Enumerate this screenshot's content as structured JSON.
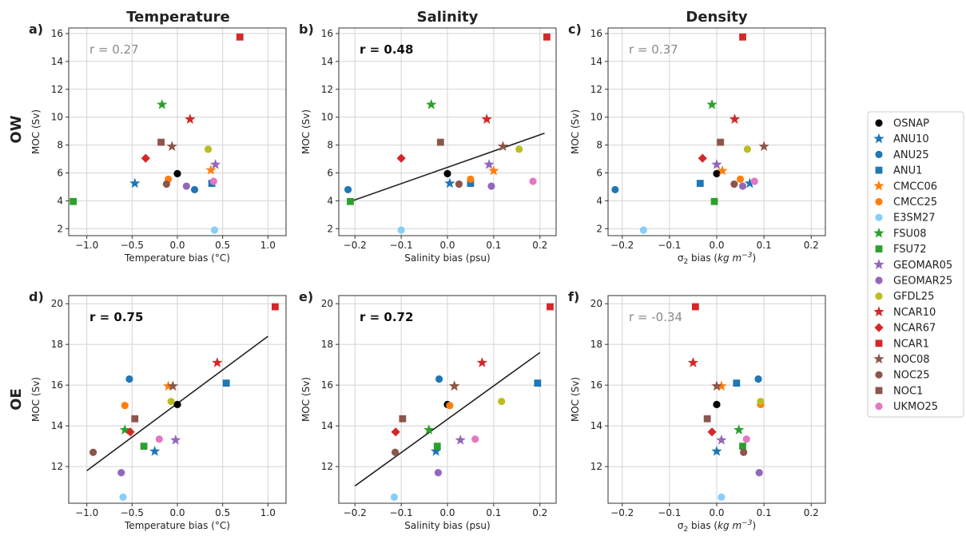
{
  "row_labels": [
    "OW",
    "OE"
  ],
  "column_titles": [
    "Temperature",
    "Salinity",
    "Density"
  ],
  "legend": [
    {
      "name": "OSNAP",
      "color": "#000000",
      "marker": "circle"
    },
    {
      "name": "ANU10",
      "color": "#1f77b4",
      "marker": "star"
    },
    {
      "name": "ANU25",
      "color": "#1f77b4",
      "marker": "circle"
    },
    {
      "name": "ANU1",
      "color": "#1f77b4",
      "marker": "square"
    },
    {
      "name": "CMCC06",
      "color": "#ff7f0e",
      "marker": "star"
    },
    {
      "name": "CMCC25",
      "color": "#ff7f0e",
      "marker": "circle"
    },
    {
      "name": "E3SM27",
      "color": "#87cefa",
      "marker": "circle"
    },
    {
      "name": "FSU08",
      "color": "#2ca02c",
      "marker": "star"
    },
    {
      "name": "FSU72",
      "color": "#2ca02c",
      "marker": "square"
    },
    {
      "name": "GEOMAR05",
      "color": "#9467bd",
      "marker": "star"
    },
    {
      "name": "GEOMAR25",
      "color": "#9467bd",
      "marker": "circle"
    },
    {
      "name": "GFDL25",
      "color": "#bcbd22",
      "marker": "circle"
    },
    {
      "name": "NCAR10",
      "color": "#d62728",
      "marker": "star"
    },
    {
      "name": "NCAR67",
      "color": "#d62728",
      "marker": "diamond"
    },
    {
      "name": "NCAR1",
      "color": "#d62728",
      "marker": "square"
    },
    {
      "name": "NOC08",
      "color": "#8c564b",
      "marker": "star"
    },
    {
      "name": "NOC25",
      "color": "#8c564b",
      "marker": "circle"
    },
    {
      "name": "NOC1",
      "color": "#8c564b",
      "marker": "square"
    },
    {
      "name": "UKMO25",
      "color": "#e377c2",
      "marker": "circle"
    }
  ],
  "chart_data": [
    {
      "type": "scatter",
      "panel_label": "a)",
      "title": "Temperature",
      "row": "OW",
      "xlabel": "Temperature bias (°C)",
      "ylabel": "MOC (Sv)",
      "xlim": [
        -1.2,
        1.2
      ],
      "ylim": [
        1.5,
        16.4
      ],
      "xticks": [
        -1.0,
        -0.5,
        0.0,
        0.5,
        1.0
      ],
      "xticklabels": [
        "−1.0",
        "−0.5",
        "0.0",
        "0.5",
        "1.0"
      ],
      "yticks": [
        2,
        4,
        6,
        8,
        10,
        12,
        14,
        16
      ],
      "yticklabels": [
        "2",
        "4",
        "6",
        "8",
        "10",
        "12",
        "14",
        "16"
      ],
      "r_text": "r = 0.27",
      "r_bold": false,
      "fit": null,
      "points": [
        {
          "name": "OSNAP",
          "x": 0.0,
          "y": 5.95
        },
        {
          "name": "ANU10",
          "x": -0.47,
          "y": 5.25
        },
        {
          "name": "ANU25",
          "x": 0.19,
          "y": 4.8
        },
        {
          "name": "ANU1",
          "x": 0.38,
          "y": 5.25
        },
        {
          "name": "CMCC06",
          "x": 0.37,
          "y": 6.2
        },
        {
          "name": "CMCC25",
          "x": -0.1,
          "y": 5.55
        },
        {
          "name": "E3SM27",
          "x": 0.41,
          "y": 1.9
        },
        {
          "name": "FSU08",
          "x": -0.17,
          "y": 10.9
        },
        {
          "name": "FSU72",
          "x": -1.15,
          "y": 3.95
        },
        {
          "name": "GEOMAR05",
          "x": 0.42,
          "y": 6.6
        },
        {
          "name": "GEOMAR25",
          "x": 0.1,
          "y": 5.05
        },
        {
          "name": "GFDL25",
          "x": 0.34,
          "y": 7.7
        },
        {
          "name": "NCAR10",
          "x": 0.14,
          "y": 9.85
        },
        {
          "name": "NCAR67",
          "x": -0.35,
          "y": 7.05
        },
        {
          "name": "NCAR1",
          "x": 0.69,
          "y": 15.75
        },
        {
          "name": "NOC08",
          "x": -0.06,
          "y": 7.9
        },
        {
          "name": "NOC25",
          "x": -0.12,
          "y": 5.2
        },
        {
          "name": "NOC1",
          "x": -0.18,
          "y": 8.2
        },
        {
          "name": "UKMO25",
          "x": 0.4,
          "y": 5.4
        }
      ]
    },
    {
      "type": "scatter",
      "panel_label": "b)",
      "title": "Salinity",
      "row": "OW",
      "xlabel": "Salinity bias (psu)",
      "ylabel": "MOC (Sv)",
      "xlim": [
        -0.235,
        0.235
      ],
      "ylim": [
        1.5,
        16.4
      ],
      "xticks": [
        -0.2,
        -0.1,
        0.0,
        0.1,
        0.2
      ],
      "xticklabels": [
        "−0.2",
        "−0.1",
        "0.0",
        "0.1",
        "0.2"
      ],
      "yticks": [
        2,
        4,
        6,
        8,
        10,
        12,
        14,
        16
      ],
      "yticklabels": [
        "2",
        "4",
        "6",
        "8",
        "10",
        "12",
        "14",
        "16"
      ],
      "r_text": "r = 0.48",
      "r_bold": true,
      "fit": [
        [
          -0.21,
          3.95
        ],
        [
          0.21,
          8.85
        ]
      ],
      "points": [
        {
          "name": "OSNAP",
          "x": 0.0,
          "y": 5.95
        },
        {
          "name": "ANU10",
          "x": 0.005,
          "y": 5.25
        },
        {
          "name": "ANU25",
          "x": -0.215,
          "y": 4.8
        },
        {
          "name": "ANU1",
          "x": 0.05,
          "y": 5.25
        },
        {
          "name": "CMCC06",
          "x": 0.1,
          "y": 6.15
        },
        {
          "name": "CMCC25",
          "x": 0.05,
          "y": 5.55
        },
        {
          "name": "E3SM27",
          "x": -0.1,
          "y": 1.9
        },
        {
          "name": "FSU08",
          "x": -0.035,
          "y": 10.9
        },
        {
          "name": "FSU72",
          "x": -0.21,
          "y": 3.95
        },
        {
          "name": "GEOMAR05",
          "x": 0.09,
          "y": 6.6
        },
        {
          "name": "GEOMAR25",
          "x": 0.095,
          "y": 5.05
        },
        {
          "name": "GFDL25",
          "x": 0.155,
          "y": 7.7
        },
        {
          "name": "NCAR10",
          "x": 0.085,
          "y": 9.85
        },
        {
          "name": "NCAR67",
          "x": -0.1,
          "y": 7.05
        },
        {
          "name": "NCAR1",
          "x": 0.215,
          "y": 15.75
        },
        {
          "name": "NOC08",
          "x": 0.12,
          "y": 7.9
        },
        {
          "name": "NOC25",
          "x": 0.025,
          "y": 5.2
        },
        {
          "name": "NOC1",
          "x": -0.015,
          "y": 8.2
        },
        {
          "name": "UKMO25",
          "x": 0.185,
          "y": 5.4
        }
      ]
    },
    {
      "type": "scatter",
      "panel_label": "c)",
      "title": "Density",
      "row": "OW",
      "xlabel": "σ₂ bias (kg m⁻³)",
      "ylabel": "MOC (Sv)",
      "xlim": [
        -0.23,
        0.23
      ],
      "ylim": [
        1.5,
        16.4
      ],
      "xticks": [
        -0.2,
        -0.1,
        0.0,
        0.1,
        0.2
      ],
      "xticklabels": [
        "−0.2",
        "−0.1",
        "0.0",
        "0.1",
        "0.2"
      ],
      "yticks": [
        2,
        4,
        6,
        8,
        10,
        12,
        14,
        16
      ],
      "yticklabels": [
        "2",
        "4",
        "6",
        "8",
        "10",
        "12",
        "14",
        "16"
      ],
      "r_text": "r = 0.37",
      "r_bold": false,
      "fit": null,
      "points": [
        {
          "name": "OSNAP",
          "x": 0.0,
          "y": 5.95
        },
        {
          "name": "ANU10",
          "x": 0.07,
          "y": 5.25
        },
        {
          "name": "ANU25",
          "x": -0.215,
          "y": 4.8
        },
        {
          "name": "ANU1",
          "x": -0.035,
          "y": 5.25
        },
        {
          "name": "CMCC06",
          "x": 0.012,
          "y": 6.15
        },
        {
          "name": "CMCC25",
          "x": 0.05,
          "y": 5.55
        },
        {
          "name": "E3SM27",
          "x": -0.155,
          "y": 1.9
        },
        {
          "name": "FSU08",
          "x": -0.01,
          "y": 10.9
        },
        {
          "name": "FSU72",
          "x": -0.005,
          "y": 3.95
        },
        {
          "name": "GEOMAR05",
          "x": 0.0,
          "y": 6.6
        },
        {
          "name": "GEOMAR25",
          "x": 0.055,
          "y": 5.05
        },
        {
          "name": "GFDL25",
          "x": 0.065,
          "y": 7.7
        },
        {
          "name": "NCAR10",
          "x": 0.038,
          "y": 9.85
        },
        {
          "name": "NCAR67",
          "x": -0.03,
          "y": 7.05
        },
        {
          "name": "NCAR1",
          "x": 0.055,
          "y": 15.75
        },
        {
          "name": "NOC08",
          "x": 0.1,
          "y": 7.9
        },
        {
          "name": "NOC25",
          "x": 0.037,
          "y": 5.2
        },
        {
          "name": "NOC1",
          "x": 0.008,
          "y": 8.2
        },
        {
          "name": "UKMO25",
          "x": 0.08,
          "y": 5.4
        }
      ]
    },
    {
      "type": "scatter",
      "panel_label": "d)",
      "title": "",
      "row": "OE",
      "xlabel": "Temperature bias (°C)",
      "ylabel": "MOC (Sv)",
      "xlim": [
        -1.2,
        1.2
      ],
      "ylim": [
        10.2,
        20.4
      ],
      "xticks": [
        -1.0,
        -0.5,
        0.0,
        0.5,
        1.0
      ],
      "xticklabels": [
        "−1.0",
        "−0.5",
        "0.0",
        "0.5",
        "1.0"
      ],
      "yticks": [
        12,
        14,
        16,
        18,
        20
      ],
      "yticklabels": [
        "12",
        "14",
        "16",
        "18",
        "20"
      ],
      "r_text": "r = 0.75",
      "r_bold": true,
      "fit": [
        [
          -1.0,
          11.8
        ],
        [
          1.0,
          18.4
        ]
      ],
      "points": [
        {
          "name": "OSNAP",
          "x": 0.0,
          "y": 15.05
        },
        {
          "name": "ANU10",
          "x": -0.25,
          "y": 12.75
        },
        {
          "name": "ANU25",
          "x": -0.53,
          "y": 16.3
        },
        {
          "name": "ANU1",
          "x": 0.54,
          "y": 16.1
        },
        {
          "name": "CMCC06",
          "x": -0.1,
          "y": 15.95
        },
        {
          "name": "CMCC25",
          "x": -0.58,
          "y": 15.0
        },
        {
          "name": "E3SM27",
          "x": -0.6,
          "y": 10.5
        },
        {
          "name": "FSU08",
          "x": -0.58,
          "y": 13.8
        },
        {
          "name": "FSU72",
          "x": -0.37,
          "y": 13.0
        },
        {
          "name": "GEOMAR05",
          "x": -0.02,
          "y": 13.3
        },
        {
          "name": "GEOMAR25",
          "x": -0.62,
          "y": 11.7
        },
        {
          "name": "GFDL25",
          "x": -0.07,
          "y": 15.2
        },
        {
          "name": "NCAR10",
          "x": 0.44,
          "y": 17.1
        },
        {
          "name": "NCAR67",
          "x": -0.52,
          "y": 13.7
        },
        {
          "name": "NCAR1",
          "x": 1.08,
          "y": 19.85
        },
        {
          "name": "NOC08",
          "x": -0.05,
          "y": 15.95
        },
        {
          "name": "NOC25",
          "x": -0.93,
          "y": 12.7
        },
        {
          "name": "NOC1",
          "x": -0.47,
          "y": 14.35
        },
        {
          "name": "UKMO25",
          "x": -0.2,
          "y": 13.35
        }
      ]
    },
    {
      "type": "scatter",
      "panel_label": "e)",
      "title": "",
      "row": "OE",
      "xlabel": "Salinity bias (psu)",
      "ylabel": "MOC (Sv)",
      "xlim": [
        -0.235,
        0.235
      ],
      "ylim": [
        10.2,
        20.4
      ],
      "xticks": [
        -0.2,
        -0.1,
        0.0,
        0.1,
        0.2
      ],
      "xticklabels": [
        "−0.2",
        "−0.1",
        "0.0",
        "0.1",
        "0.2"
      ],
      "yticks": [
        12,
        14,
        16,
        18,
        20
      ],
      "yticklabels": [
        "12",
        "14",
        "16",
        "18",
        "20"
      ],
      "r_text": "r = 0.72",
      "r_bold": true,
      "fit": [
        [
          -0.2,
          11.05
        ],
        [
          0.2,
          17.6
        ]
      ],
      "points": [
        {
          "name": "OSNAP",
          "x": 0.0,
          "y": 15.05
        },
        {
          "name": "ANU10",
          "x": -0.025,
          "y": 12.75
        },
        {
          "name": "ANU25",
          "x": -0.018,
          "y": 16.3
        },
        {
          "name": "ANU1",
          "x": 0.195,
          "y": 16.1
        },
        {
          "name": "CMCC06",
          "x": 0.015,
          "y": 15.95
        },
        {
          "name": "CMCC25",
          "x": 0.005,
          "y": 15.0
        },
        {
          "name": "E3SM27",
          "x": -0.115,
          "y": 10.5
        },
        {
          "name": "FSU08",
          "x": -0.04,
          "y": 13.8
        },
        {
          "name": "FSU72",
          "x": -0.022,
          "y": 13.0
        },
        {
          "name": "GEOMAR05",
          "x": 0.028,
          "y": 13.3
        },
        {
          "name": "GEOMAR25",
          "x": -0.02,
          "y": 11.7
        },
        {
          "name": "GFDL25",
          "x": 0.117,
          "y": 15.2
        },
        {
          "name": "NCAR10",
          "x": 0.075,
          "y": 17.1
        },
        {
          "name": "NCAR67",
          "x": -0.112,
          "y": 13.7
        },
        {
          "name": "NCAR1",
          "x": 0.222,
          "y": 19.85
        },
        {
          "name": "NOC08",
          "x": 0.015,
          "y": 15.95
        },
        {
          "name": "NOC25",
          "x": -0.113,
          "y": 12.7
        },
        {
          "name": "NOC1",
          "x": -0.097,
          "y": 14.35
        },
        {
          "name": "UKMO25",
          "x": 0.06,
          "y": 13.35
        }
      ]
    },
    {
      "type": "scatter",
      "panel_label": "f)",
      "title": "",
      "row": "OE",
      "xlabel": "σ₂ bias (kg m⁻³)",
      "ylabel": "MOC (Sv)",
      "xlim": [
        -0.23,
        0.23
      ],
      "ylim": [
        10.2,
        20.4
      ],
      "xticks": [
        -0.2,
        -0.1,
        0.0,
        0.1,
        0.2
      ],
      "xticklabels": [
        "−0.2",
        "−0.1",
        "0.0",
        "0.1",
        "0.2"
      ],
      "yticks": [
        12,
        14,
        16,
        18,
        20
      ],
      "yticklabels": [
        "12",
        "14",
        "16",
        "18",
        "20"
      ],
      "r_text": "r = -0.34",
      "r_bold": false,
      "fit": null,
      "points": [
        {
          "name": "OSNAP",
          "x": 0.0,
          "y": 15.05
        },
        {
          "name": "ANU10",
          "x": 0.0,
          "y": 12.75
        },
        {
          "name": "ANU25",
          "x": 0.088,
          "y": 16.3
        },
        {
          "name": "ANU1",
          "x": 0.042,
          "y": 16.1
        },
        {
          "name": "CMCC06",
          "x": 0.01,
          "y": 15.95
        },
        {
          "name": "CMCC25",
          "x": 0.093,
          "y": 15.05
        },
        {
          "name": "E3SM27",
          "x": 0.01,
          "y": 10.5
        },
        {
          "name": "FSU08",
          "x": 0.047,
          "y": 13.8
        },
        {
          "name": "FSU72",
          "x": 0.055,
          "y": 13.0
        },
        {
          "name": "GEOMAR05",
          "x": 0.01,
          "y": 13.3
        },
        {
          "name": "GEOMAR25",
          "x": 0.09,
          "y": 11.7
        },
        {
          "name": "GFDL25",
          "x": 0.093,
          "y": 15.2
        },
        {
          "name": "NCAR10",
          "x": -0.05,
          "y": 17.1
        },
        {
          "name": "NCAR67",
          "x": -0.01,
          "y": 13.7
        },
        {
          "name": "NCAR1",
          "x": -0.045,
          "y": 19.85
        },
        {
          "name": "NOC08",
          "x": 0.0,
          "y": 15.95
        },
        {
          "name": "NOC25",
          "x": 0.057,
          "y": 12.7
        },
        {
          "name": "NOC1",
          "x": -0.02,
          "y": 14.35
        },
        {
          "name": "UKMO25",
          "x": 0.063,
          "y": 13.35
        }
      ]
    }
  ]
}
